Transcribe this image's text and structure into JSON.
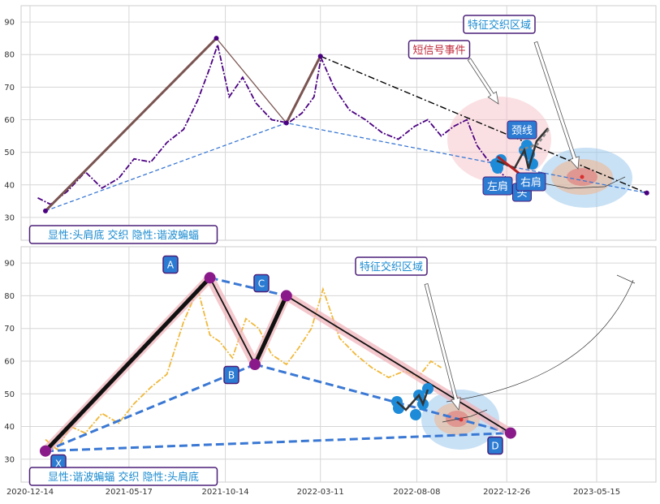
{
  "chart_data": [
    {
      "type": "line",
      "y_ticks": [
        30,
        40,
        50,
        60,
        70,
        80,
        90
      ],
      "ylim": [
        23,
        95
      ],
      "grid": true,
      "series": [
        {
          "role": "price",
          "x": [
            "2020-12-26",
            "2021-01-15",
            "2021-02-10",
            "2021-03-10",
            "2021-04-05",
            "2021-05-01",
            "2021-05-25",
            "2021-06-20",
            "2021-07-15",
            "2021-08-10",
            "2021-09-01",
            "2021-09-20",
            "2021-10-02",
            "2021-10-20",
            "2021-11-10",
            "2021-12-01",
            "2021-12-25",
            "2022-01-20",
            "2022-02-10",
            "2022-03-01",
            "2022-03-12",
            "2022-04-01",
            "2022-04-25",
            "2022-05-20",
            "2022-06-15",
            "2022-07-10",
            "2022-08-05",
            "2022-08-25",
            "2022-09-15",
            "2022-10-05",
            "2022-10-25",
            "2022-11-10",
            "2022-11-25",
            "2022-12-10",
            "2022-12-26"
          ],
          "y": [
            36,
            34,
            38,
            44,
            39,
            42,
            48,
            47,
            53,
            57,
            66,
            76,
            83,
            67,
            73,
            65,
            60,
            59,
            62,
            67,
            79,
            70,
            63,
            60,
            56,
            54,
            58,
            60,
            55,
            58,
            60,
            52,
            48,
            45,
            42
          ]
        },
        {
          "role": "head-shoulders-pattern",
          "x": [
            "2021-01-07",
            "2021-09-30",
            "2022-01-17",
            "2022-03-11"
          ],
          "y": [
            32,
            85,
            59,
            79.5
          ]
        },
        {
          "role": "neckline",
          "x": [
            "2021-01-07",
            "2022-01-17",
            "2023-08-01"
          ],
          "y": [
            32,
            59,
            37.5
          ]
        },
        {
          "role": "trend-line",
          "x": [
            "2022-03-11",
            "2023-08-01"
          ],
          "y": [
            79.5,
            37.5
          ]
        }
      ],
      "annotations": [
        {
          "label": "特征交织区域",
          "x": "2023-04-01",
          "y": 41.5
        },
        {
          "label": "短信号事件",
          "x": "2022-11-20",
          "y": 54
        },
        {
          "label": "颈线"
        },
        {
          "label": "左肩"
        },
        {
          "label": "头"
        },
        {
          "label": "右肩"
        }
      ],
      "caption": "显性:头肩底 交织 隐性:谐波蝙蝠"
    },
    {
      "type": "line",
      "x_ticks": [
        "2020-12-14",
        "2021-05-17",
        "2021-10-14",
        "2022-03-11",
        "2022-08-08",
        "2022-12-26",
        "2023-05-15"
      ],
      "y_ticks": [
        30,
        40,
        50,
        60,
        70,
        80,
        90
      ],
      "ylim": [
        23,
        95
      ],
      "grid": true,
      "series": [
        {
          "role": "price",
          "x": [
            "2021-01-07",
            "2021-01-25",
            "2021-02-15",
            "2021-03-10",
            "2021-04-05",
            "2021-05-01",
            "2021-05-25",
            "2021-06-20",
            "2021-07-15",
            "2021-08-10",
            "2021-09-01",
            "2021-09-20",
            "2021-10-05",
            "2021-10-25",
            "2021-11-15",
            "2021-12-05",
            "2021-12-25",
            "2022-01-17",
            "2022-02-05",
            "2022-02-25",
            "2022-03-15",
            "2022-04-10",
            "2022-05-05",
            "2022-05-30",
            "2022-06-25",
            "2022-07-20",
            "2022-08-10",
            "2022-08-30",
            "2022-09-15"
          ],
          "y": [
            36,
            33,
            40,
            38,
            44,
            41,
            47,
            52,
            56,
            72,
            82,
            68,
            66,
            61,
            73,
            70,
            62,
            59,
            64,
            70,
            82,
            67,
            62,
            58,
            55,
            57,
            55,
            60,
            58
          ]
        },
        {
          "role": "bat-pattern",
          "points": [
            "X",
            "A",
            "B",
            "C",
            "D"
          ],
          "x": [
            "2021-01-07",
            "2021-09-20",
            "2021-11-29",
            "2022-01-17",
            "2023-01-01"
          ],
          "y": [
            32.5,
            85.5,
            59,
            80,
            38
          ]
        },
        {
          "role": "XD-line",
          "x": [
            "2021-01-07",
            "2023-01-01"
          ],
          "y": [
            32.5,
            38
          ]
        },
        {
          "role": "XB-line",
          "x": [
            "2021-01-07",
            "2021-11-29"
          ],
          "y": [
            32.5,
            59
          ]
        },
        {
          "role": "BD-line",
          "x": [
            "2021-11-29",
            "2023-01-01"
          ],
          "y": [
            59,
            38
          ]
        },
        {
          "role": "AC-line",
          "x": [
            "2021-09-20",
            "2022-01-17"
          ],
          "y": [
            85.5,
            80
          ]
        },
        {
          "role": "head-shoulders-pattern",
          "x": [
            "2022-08-10",
            "2022-09-01",
            "2022-09-20",
            "2022-10-10",
            "2022-11-25"
          ],
          "y": [
            47,
            48,
            44,
            50,
            42
          ]
        }
      ],
      "annotations": [
        {
          "label": "X"
        },
        {
          "label": "A"
        },
        {
          "label": "B"
        },
        {
          "label": "C"
        },
        {
          "label": "D"
        },
        {
          "label": "特征交织区域",
          "x": "2022-11-15",
          "y": 41.5
        }
      ],
      "caption": "显性:谐波蝙蝠 交织 隐性:头肩底"
    }
  ],
  "colors": {
    "price_top": "#4b0082",
    "price_bottom": "#f0b83a",
    "pattern_brown": "#7a5451",
    "dashed_blue": "#3a78d4",
    "dash_dot_black": "#000000",
    "cyan_marker": "#1e8bd8",
    "label_box": "#2b7bd3",
    "label_border": "#4b1e78",
    "annotation_text": "#1a8bd0",
    "signal_text": "#c0283a",
    "pink_zone": "#f5c6cc",
    "blue_zone": "#9cc9ec",
    "orange_zone": "#f2b58a",
    "red_zone": "#e07070"
  }
}
